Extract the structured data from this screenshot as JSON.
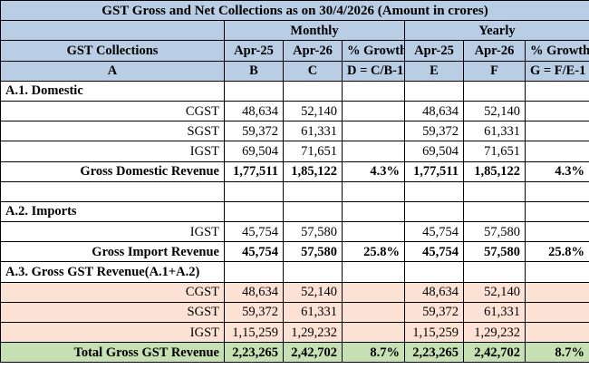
{
  "title": "GST Gross and Net Collections as on  30/4/2026 (Amount in crores)",
  "header": {
    "col_label": "GST Collections",
    "monthly": "Monthly",
    "yearly": "Yearly",
    "cols": [
      "Apr-25",
      "Apr-26",
      "% Growth",
      "Apr-25",
      "Apr-26",
      "% Growth"
    ],
    "letters": [
      "A",
      "B",
      "C",
      "D = C/B-1",
      "E",
      "F",
      "G = F/E-1"
    ]
  },
  "sections": {
    "domestic": {
      "title": "A.1. Domestic",
      "rows": [
        {
          "label": "CGST",
          "b": "48,634",
          "c": "52,140",
          "d": "",
          "e": "48,634",
          "f": "52,140",
          "g": ""
        },
        {
          "label": "SGST",
          "b": "59,372",
          "c": "61,331",
          "d": "",
          "e": "59,372",
          "f": "61,331",
          "g": ""
        },
        {
          "label": "IGST",
          "b": "69,504",
          "c": "71,651",
          "d": "",
          "e": "69,504",
          "f": "71,651",
          "g": ""
        }
      ],
      "total": {
        "label": "Gross Domestic Revenue",
        "b": "1,77,511",
        "c": "1,85,122",
        "d": "4.3%",
        "e": "1,77,511",
        "f": "1,85,122",
        "g": "4.3%"
      }
    },
    "imports": {
      "title": "A.2. Imports",
      "rows": [
        {
          "label": "IGST",
          "b": "45,754",
          "c": "57,580",
          "d": "",
          "e": "45,754",
          "f": "57,580",
          "g": ""
        }
      ],
      "total": {
        "label": "Gross Import Revenue",
        "b": "45,754",
        "c": "57,580",
        "d": "25.8%",
        "e": "45,754",
        "f": "57,580",
        "g": "25.8%"
      }
    },
    "gross": {
      "title": "A.3. Gross GST Revenue(A.1+A.2)",
      "rows": [
        {
          "label": "CGST",
          "b": "48,634",
          "c": "52,140",
          "d": "",
          "e": "48,634",
          "f": "52,140",
          "g": ""
        },
        {
          "label": "SGST",
          "b": "59,372",
          "c": "61,331",
          "d": "",
          "e": "59,372",
          "f": "61,331",
          "g": ""
        },
        {
          "label": "IGST",
          "b": "1,15,259",
          "c": "1,29,232",
          "d": "",
          "e": "1,15,259",
          "f": "1,29,232",
          "g": ""
        }
      ],
      "total": {
        "label": "Total Gross GST Revenue",
        "b": "2,23,265",
        "c": "2,42,702",
        "d": "8.7%",
        "e": "2,23,265",
        "f": "2,42,702",
        "g": "8.7%"
      }
    }
  },
  "colors": {
    "header": "#b9cde5",
    "highlight": "#fbe2d5",
    "grand_total": "#c6e0b4"
  }
}
